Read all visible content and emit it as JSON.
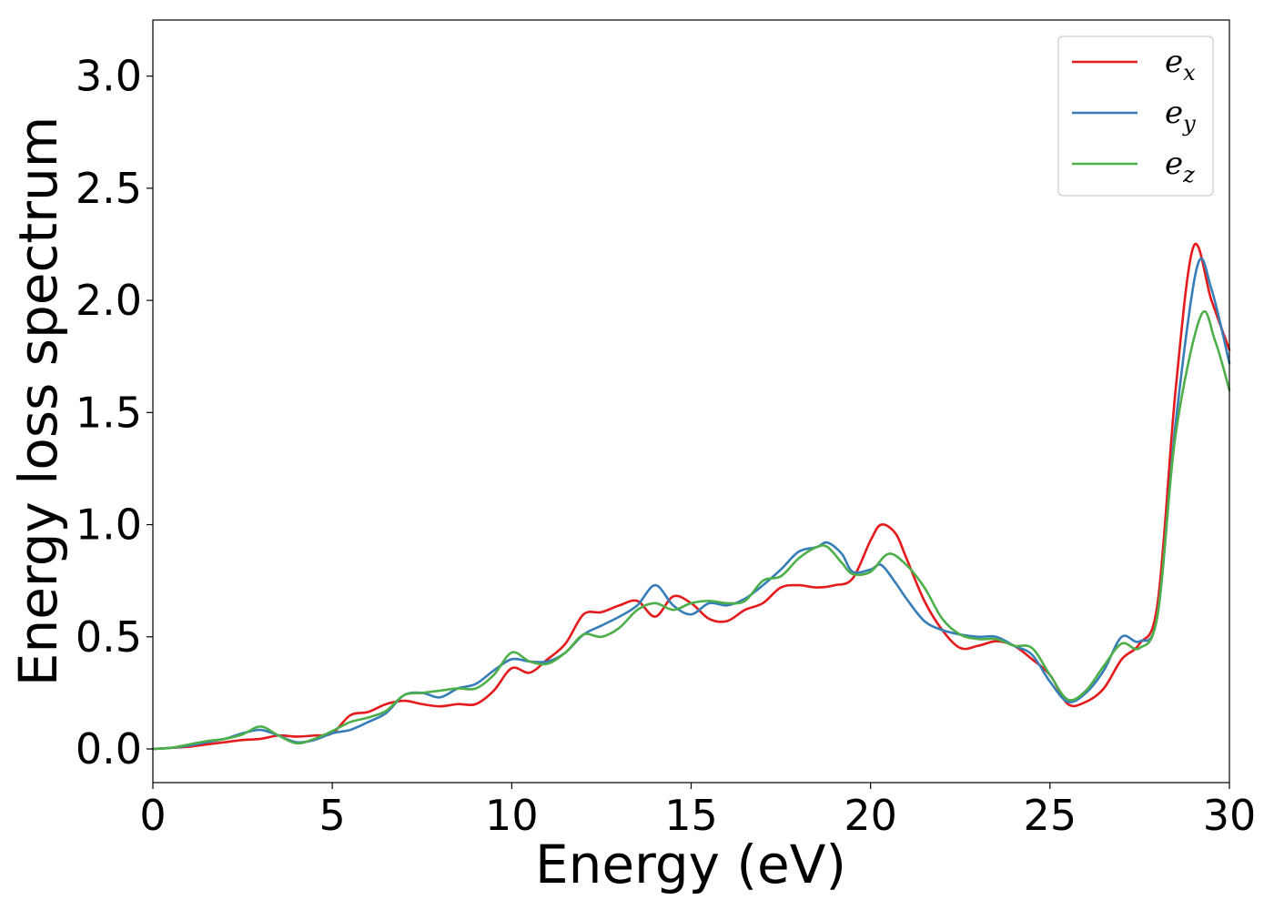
{
  "chart_data": {
    "type": "line",
    "title": "",
    "xlabel": "Energy (eV)",
    "ylabel": "Energy loss spectrum",
    "xlim": [
      0,
      30
    ],
    "ylim": [
      -0.15,
      3.25
    ],
    "xticks": [
      "0",
      "5",
      "10",
      "15",
      "20",
      "25",
      "30"
    ],
    "yticks": [
      "0.0",
      "0.5",
      "1.0",
      "1.5",
      "2.0",
      "2.5",
      "3.0"
    ],
    "grid": false,
    "legend_position": "top-right",
    "series": [
      {
        "name": "e",
        "subscript": "x",
        "color": "#e41a1c",
        "points": [
          [
            0,
            0
          ],
          [
            0.5,
            0.005
          ],
          [
            1,
            0.01
          ],
          [
            1.5,
            0.02
          ],
          [
            2,
            0.03
          ],
          [
            2.5,
            0.04
          ],
          [
            3,
            0.045
          ],
          [
            3.5,
            0.06
          ],
          [
            4,
            0.055
          ],
          [
            4.5,
            0.06
          ],
          [
            5,
            0.07
          ],
          [
            5.5,
            0.15
          ],
          [
            6,
            0.165
          ],
          [
            6.5,
            0.2
          ],
          [
            7,
            0.215
          ],
          [
            7.5,
            0.2
          ],
          [
            8,
            0.19
          ],
          [
            8.5,
            0.2
          ],
          [
            9,
            0.2
          ],
          [
            9.5,
            0.26
          ],
          [
            10,
            0.36
          ],
          [
            10.5,
            0.34
          ],
          [
            11,
            0.4
          ],
          [
            11.5,
            0.47
          ],
          [
            12,
            0.6
          ],
          [
            12.5,
            0.61
          ],
          [
            13,
            0.64
          ],
          [
            13.5,
            0.66
          ],
          [
            14,
            0.59
          ],
          [
            14.5,
            0.68
          ],
          [
            15,
            0.65
          ],
          [
            15.5,
            0.58
          ],
          [
            16,
            0.57
          ],
          [
            16.5,
            0.62
          ],
          [
            17,
            0.65
          ],
          [
            17.5,
            0.72
          ],
          [
            18,
            0.73
          ],
          [
            18.5,
            0.72
          ],
          [
            19,
            0.73
          ],
          [
            19.5,
            0.76
          ],
          [
            20,
            0.93
          ],
          [
            20.3,
            1.0
          ],
          [
            20.7,
            0.96
          ],
          [
            21,
            0.85
          ],
          [
            21.5,
            0.66
          ],
          [
            22,
            0.53
          ],
          [
            22.5,
            0.45
          ],
          [
            23,
            0.46
          ],
          [
            23.5,
            0.48
          ],
          [
            24,
            0.46
          ],
          [
            24.5,
            0.4
          ],
          [
            25,
            0.33
          ],
          [
            25.5,
            0.2
          ],
          [
            26,
            0.21
          ],
          [
            26.5,
            0.27
          ],
          [
            27,
            0.4
          ],
          [
            27.5,
            0.47
          ],
          [
            28,
            0.65
          ],
          [
            28.5,
            1.6
          ],
          [
            29,
            2.24
          ],
          [
            29.5,
            2.0
          ],
          [
            30,
            1.78
          ]
        ]
      },
      {
        "name": "e",
        "subscript": "y",
        "color": "#377eb8",
        "points": [
          [
            0,
            0
          ],
          [
            0.5,
            0.005
          ],
          [
            1,
            0.015
          ],
          [
            1.5,
            0.03
          ],
          [
            2,
            0.045
          ],
          [
            2.5,
            0.07
          ],
          [
            3,
            0.085
          ],
          [
            3.5,
            0.06
          ],
          [
            4,
            0.03
          ],
          [
            4.5,
            0.04
          ],
          [
            5,
            0.07
          ],
          [
            5.5,
            0.085
          ],
          [
            6,
            0.12
          ],
          [
            6.5,
            0.16
          ],
          [
            7,
            0.24
          ],
          [
            7.5,
            0.25
          ],
          [
            8,
            0.23
          ],
          [
            8.5,
            0.27
          ],
          [
            9,
            0.29
          ],
          [
            9.5,
            0.35
          ],
          [
            10,
            0.4
          ],
          [
            10.5,
            0.39
          ],
          [
            11,
            0.39
          ],
          [
            11.5,
            0.43
          ],
          [
            12,
            0.51
          ],
          [
            12.5,
            0.55
          ],
          [
            13,
            0.59
          ],
          [
            13.5,
            0.64
          ],
          [
            14,
            0.73
          ],
          [
            14.5,
            0.64
          ],
          [
            15,
            0.6
          ],
          [
            15.5,
            0.65
          ],
          [
            16,
            0.64
          ],
          [
            16.5,
            0.67
          ],
          [
            17,
            0.73
          ],
          [
            17.5,
            0.8
          ],
          [
            18,
            0.88
          ],
          [
            18.5,
            0.9
          ],
          [
            18.8,
            0.92
          ],
          [
            19.2,
            0.87
          ],
          [
            19.5,
            0.79
          ],
          [
            20,
            0.8
          ],
          [
            20.3,
            0.82
          ],
          [
            20.7,
            0.74
          ],
          [
            21,
            0.67
          ],
          [
            21.5,
            0.57
          ],
          [
            22,
            0.53
          ],
          [
            22.5,
            0.51
          ],
          [
            23,
            0.5
          ],
          [
            23.5,
            0.5
          ],
          [
            24,
            0.46
          ],
          [
            24.5,
            0.42
          ],
          [
            25,
            0.3
          ],
          [
            25.5,
            0.21
          ],
          [
            26,
            0.25
          ],
          [
            26.5,
            0.35
          ],
          [
            27,
            0.5
          ],
          [
            27.5,
            0.48
          ],
          [
            28,
            0.6
          ],
          [
            28.5,
            1.45
          ],
          [
            29.1,
            2.15
          ],
          [
            29.5,
            2.05
          ],
          [
            30,
            1.72
          ]
        ]
      },
      {
        "name": "e",
        "subscript": "z",
        "color": "#4daf4a",
        "points": [
          [
            0,
            0
          ],
          [
            0.5,
            0.005
          ],
          [
            1,
            0.02
          ],
          [
            1.5,
            0.035
          ],
          [
            2,
            0.045
          ],
          [
            2.5,
            0.065
          ],
          [
            3,
            0.1
          ],
          [
            3.5,
            0.06
          ],
          [
            4,
            0.025
          ],
          [
            4.5,
            0.045
          ],
          [
            5,
            0.08
          ],
          [
            5.5,
            0.12
          ],
          [
            6,
            0.14
          ],
          [
            6.5,
            0.17
          ],
          [
            7,
            0.24
          ],
          [
            7.5,
            0.25
          ],
          [
            8,
            0.26
          ],
          [
            8.5,
            0.27
          ],
          [
            9,
            0.27
          ],
          [
            9.5,
            0.33
          ],
          [
            10,
            0.43
          ],
          [
            10.5,
            0.39
          ],
          [
            11,
            0.38
          ],
          [
            11.5,
            0.43
          ],
          [
            12,
            0.51
          ],
          [
            12.5,
            0.5
          ],
          [
            13,
            0.54
          ],
          [
            13.5,
            0.62
          ],
          [
            14,
            0.65
          ],
          [
            14.5,
            0.62
          ],
          [
            15,
            0.65
          ],
          [
            15.5,
            0.66
          ],
          [
            16,
            0.65
          ],
          [
            16.5,
            0.66
          ],
          [
            17,
            0.75
          ],
          [
            17.5,
            0.77
          ],
          [
            18,
            0.85
          ],
          [
            18.5,
            0.9
          ],
          [
            18.8,
            0.9
          ],
          [
            19.2,
            0.83
          ],
          [
            19.5,
            0.78
          ],
          [
            20,
            0.79
          ],
          [
            20.5,
            0.87
          ],
          [
            21,
            0.82
          ],
          [
            21.5,
            0.72
          ],
          [
            22,
            0.58
          ],
          [
            22.5,
            0.51
          ],
          [
            23,
            0.49
          ],
          [
            23.5,
            0.49
          ],
          [
            24,
            0.46
          ],
          [
            24.5,
            0.45
          ],
          [
            25,
            0.33
          ],
          [
            25.5,
            0.22
          ],
          [
            26,
            0.26
          ],
          [
            26.5,
            0.37
          ],
          [
            27,
            0.47
          ],
          [
            27.5,
            0.45
          ],
          [
            28,
            0.6
          ],
          [
            28.5,
            1.4
          ],
          [
            29.2,
            1.93
          ],
          [
            29.6,
            1.82
          ],
          [
            30,
            1.6
          ]
        ]
      }
    ]
  }
}
